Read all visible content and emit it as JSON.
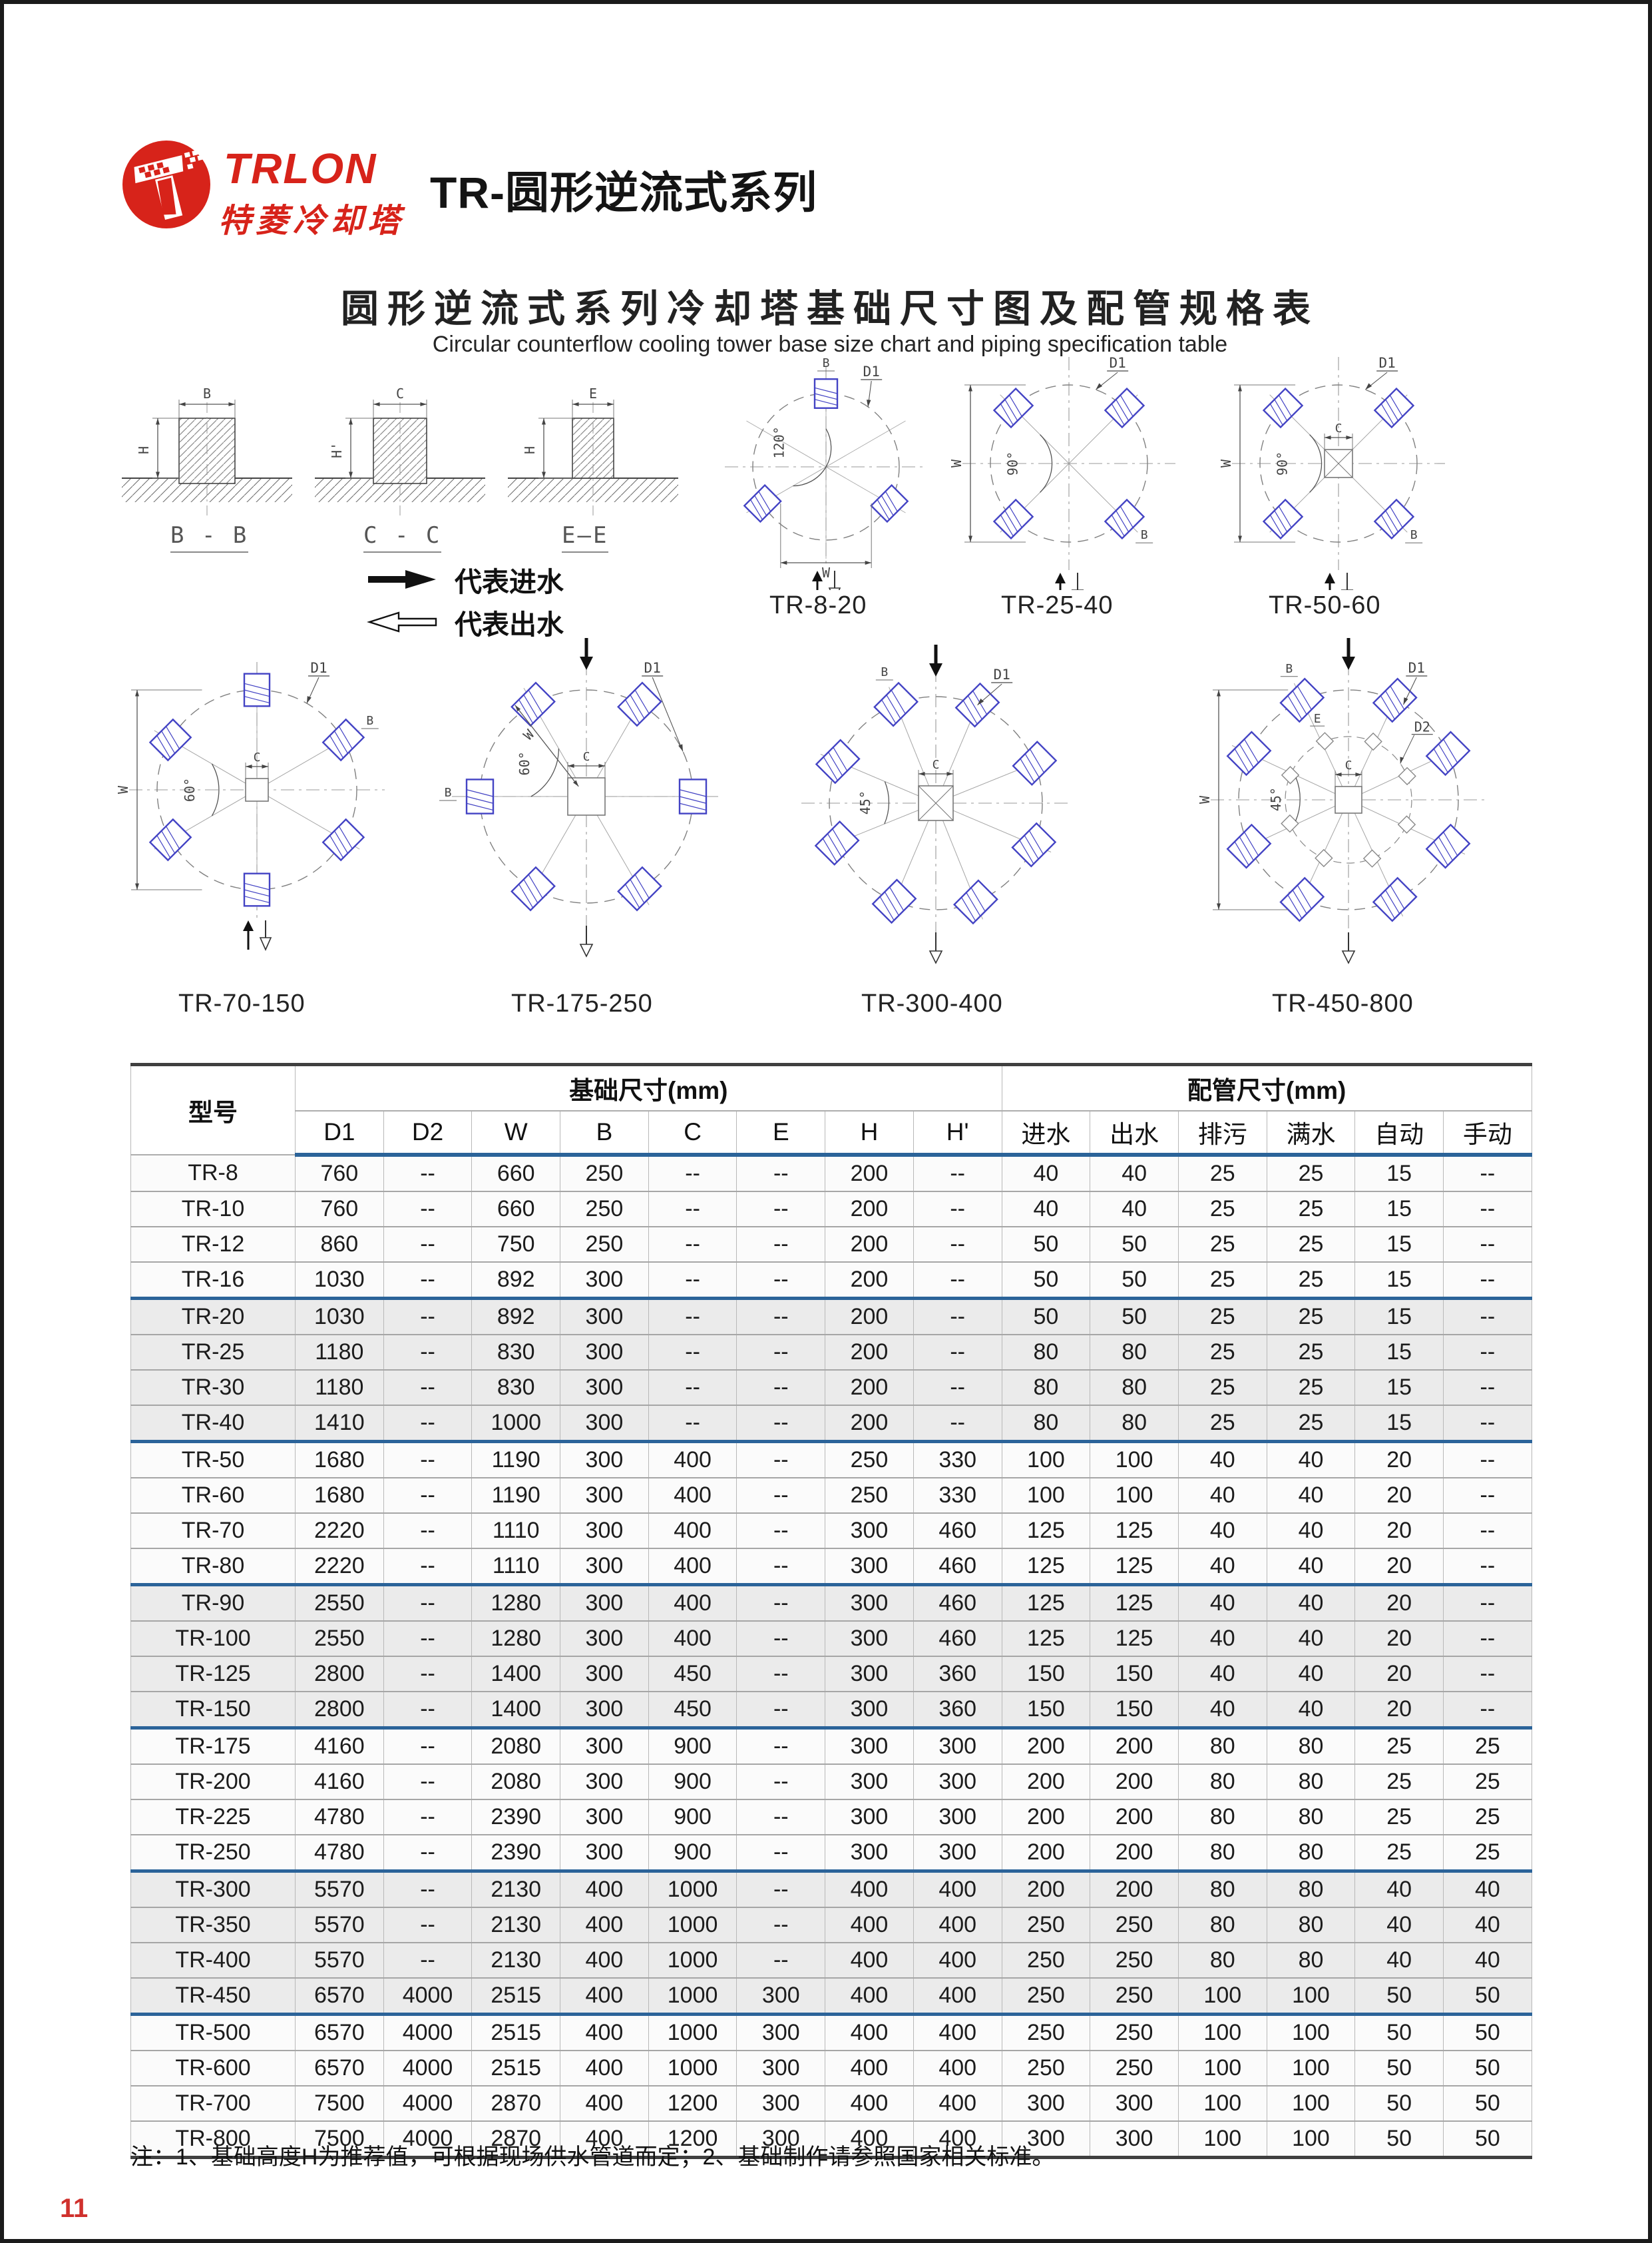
{
  "page": {
    "number": "11"
  },
  "header": {
    "brand_en": "TRLON",
    "brand_cn": "特菱冷却塔",
    "series_title": "TR-圆形逆流式系列"
  },
  "title": {
    "cn": "圆形逆流式系列冷却塔基础尺寸图及配管规格表",
    "en": "Circular counterflow cooling tower base size chart and piping specification table"
  },
  "legend": {
    "inlet": "代表进水",
    "outlet": "代表出水"
  },
  "dims": {
    "d1": "D1",
    "d2": "D2",
    "w": "W",
    "b": "B",
    "c": "C",
    "e": "E",
    "h": "H",
    "h2": "H'"
  },
  "sections": [
    {
      "label": "B - B",
      "w": "B",
      "h": "H"
    },
    {
      "label": "C - C",
      "w": "C",
      "h": "H'"
    },
    {
      "label": "E—E",
      "w": "E",
      "h": "H"
    }
  ],
  "plans": [
    {
      "label": "TR-8-20",
      "angle": "120°"
    },
    {
      "label": "TR-25-40",
      "angle": "90°"
    },
    {
      "label": "TR-50-60",
      "angle": "90°"
    },
    {
      "label": "TR-70-150",
      "angle": "60°"
    },
    {
      "label": "TR-175-250",
      "angle": "60°"
    },
    {
      "label": "TR-300-400",
      "angle": "45°"
    },
    {
      "label": "TR-450-800",
      "angle": "45°"
    }
  ],
  "table": {
    "col_model": "型号",
    "group_base": "基础尺寸(mm)",
    "group_pipe": "配管尺寸(mm)",
    "sub_headers": [
      "D1",
      "D2",
      "W",
      "B",
      "C",
      "E",
      "H",
      "H'",
      "进水",
      "出水",
      "排污",
      "满水",
      "自动",
      "手动"
    ],
    "rows": [
      {
        "model": "TR-8",
        "v": [
          "760",
          "--",
          "660",
          "250",
          "--",
          "--",
          "200",
          "--",
          "40",
          "40",
          "25",
          "25",
          "15",
          "--"
        ]
      },
      {
        "model": "TR-10",
        "v": [
          "760",
          "--",
          "660",
          "250",
          "--",
          "--",
          "200",
          "--",
          "40",
          "40",
          "25",
          "25",
          "15",
          "--"
        ]
      },
      {
        "model": "TR-12",
        "v": [
          "860",
          "--",
          "750",
          "250",
          "--",
          "--",
          "200",
          "--",
          "50",
          "50",
          "25",
          "25",
          "15",
          "--"
        ]
      },
      {
        "model": "TR-16",
        "v": [
          "1030",
          "--",
          "892",
          "300",
          "--",
          "--",
          "200",
          "--",
          "50",
          "50",
          "25",
          "25",
          "15",
          "--"
        ]
      },
      {
        "model": "TR-20",
        "v": [
          "1030",
          "--",
          "892",
          "300",
          "--",
          "--",
          "200",
          "--",
          "50",
          "50",
          "25",
          "25",
          "15",
          "--"
        ]
      },
      {
        "model": "TR-25",
        "v": [
          "1180",
          "--",
          "830",
          "300",
          "--",
          "--",
          "200",
          "--",
          "80",
          "80",
          "25",
          "25",
          "15",
          "--"
        ]
      },
      {
        "model": "TR-30",
        "v": [
          "1180",
          "--",
          "830",
          "300",
          "--",
          "--",
          "200",
          "--",
          "80",
          "80",
          "25",
          "25",
          "15",
          "--"
        ]
      },
      {
        "model": "TR-40",
        "v": [
          "1410",
          "--",
          "1000",
          "300",
          "--",
          "--",
          "200",
          "--",
          "80",
          "80",
          "25",
          "25",
          "15",
          "--"
        ]
      },
      {
        "model": "TR-50",
        "v": [
          "1680",
          "--",
          "1190",
          "300",
          "400",
          "--",
          "250",
          "330",
          "100",
          "100",
          "40",
          "40",
          "20",
          "--"
        ]
      },
      {
        "model": "TR-60",
        "v": [
          "1680",
          "--",
          "1190",
          "300",
          "400",
          "--",
          "250",
          "330",
          "100",
          "100",
          "40",
          "40",
          "20",
          "--"
        ]
      },
      {
        "model": "TR-70",
        "v": [
          "2220",
          "--",
          "1110",
          "300",
          "400",
          "--",
          "300",
          "460",
          "125",
          "125",
          "40",
          "40",
          "20",
          "--"
        ]
      },
      {
        "model": "TR-80",
        "v": [
          "2220",
          "--",
          "1110",
          "300",
          "400",
          "--",
          "300",
          "460",
          "125",
          "125",
          "40",
          "40",
          "20",
          "--"
        ]
      },
      {
        "model": "TR-90",
        "v": [
          "2550",
          "--",
          "1280",
          "300",
          "400",
          "--",
          "300",
          "460",
          "125",
          "125",
          "40",
          "40",
          "20",
          "--"
        ]
      },
      {
        "model": "TR-100",
        "v": [
          "2550",
          "--",
          "1280",
          "300",
          "400",
          "--",
          "300",
          "460",
          "125",
          "125",
          "40",
          "40",
          "20",
          "--"
        ]
      },
      {
        "model": "TR-125",
        "v": [
          "2800",
          "--",
          "1400",
          "300",
          "450",
          "--",
          "300",
          "360",
          "150",
          "150",
          "40",
          "40",
          "20",
          "--"
        ]
      },
      {
        "model": "TR-150",
        "v": [
          "2800",
          "--",
          "1400",
          "300",
          "450",
          "--",
          "300",
          "360",
          "150",
          "150",
          "40",
          "40",
          "20",
          "--"
        ]
      },
      {
        "model": "TR-175",
        "v": [
          "4160",
          "--",
          "2080",
          "300",
          "900",
          "--",
          "300",
          "300",
          "200",
          "200",
          "80",
          "80",
          "25",
          "25"
        ]
      },
      {
        "model": "TR-200",
        "v": [
          "4160",
          "--",
          "2080",
          "300",
          "900",
          "--",
          "300",
          "300",
          "200",
          "200",
          "80",
          "80",
          "25",
          "25"
        ]
      },
      {
        "model": "TR-225",
        "v": [
          "4780",
          "--",
          "2390",
          "300",
          "900",
          "--",
          "300",
          "300",
          "200",
          "200",
          "80",
          "80",
          "25",
          "25"
        ]
      },
      {
        "model": "TR-250",
        "v": [
          "4780",
          "--",
          "2390",
          "300",
          "900",
          "--",
          "300",
          "300",
          "200",
          "200",
          "80",
          "80",
          "25",
          "25"
        ]
      },
      {
        "model": "TR-300",
        "v": [
          "5570",
          "--",
          "2130",
          "400",
          "1000",
          "--",
          "400",
          "400",
          "200",
          "200",
          "80",
          "80",
          "40",
          "40"
        ]
      },
      {
        "model": "TR-350",
        "v": [
          "5570",
          "--",
          "2130",
          "400",
          "1000",
          "--",
          "400",
          "400",
          "250",
          "250",
          "80",
          "80",
          "40",
          "40"
        ]
      },
      {
        "model": "TR-400",
        "v": [
          "5570",
          "--",
          "2130",
          "400",
          "1000",
          "--",
          "400",
          "400",
          "250",
          "250",
          "80",
          "80",
          "40",
          "40"
        ]
      },
      {
        "model": "TR-450",
        "v": [
          "6570",
          "4000",
          "2515",
          "400",
          "1000",
          "300",
          "400",
          "400",
          "250",
          "250",
          "100",
          "100",
          "50",
          "50"
        ]
      },
      {
        "model": "TR-500",
        "v": [
          "6570",
          "4000",
          "2515",
          "400",
          "1000",
          "300",
          "400",
          "400",
          "250",
          "250",
          "100",
          "100",
          "50",
          "50"
        ]
      },
      {
        "model": "TR-600",
        "v": [
          "6570",
          "4000",
          "2515",
          "400",
          "1000",
          "300",
          "400",
          "400",
          "250",
          "250",
          "100",
          "100",
          "50",
          "50"
        ]
      },
      {
        "model": "TR-700",
        "v": [
          "7500",
          "4000",
          "2870",
          "400",
          "1200",
          "300",
          "400",
          "400",
          "300",
          "300",
          "100",
          "100",
          "50",
          "50"
        ]
      },
      {
        "model": "TR-800",
        "v": [
          "7500",
          "4000",
          "2870",
          "400",
          "1200",
          "300",
          "400",
          "400",
          "300",
          "300",
          "100",
          "100",
          "50",
          "50"
        ]
      }
    ]
  },
  "note": "注：1、基础高度H为推荐值，可根据现场供水管道而定；2、基础制作请参照国家相关标准。"
}
